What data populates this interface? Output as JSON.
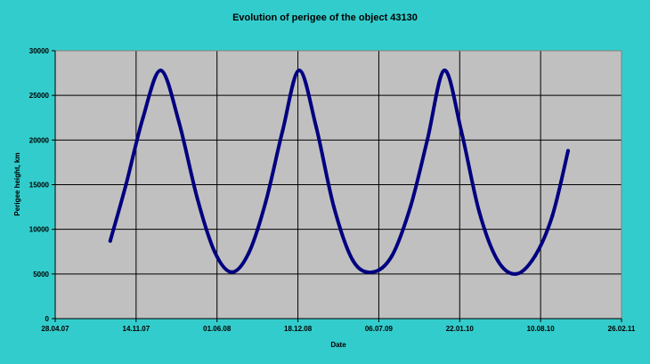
{
  "chart_data": {
    "type": "line",
    "title": "Evolution of perigee of the object 43130",
    "xlabel": "Date",
    "ylabel": "Perigee height, km",
    "x_tick_labels": [
      "28.04.07",
      "14.11.07",
      "01.06.08",
      "18.12.08",
      "06.07.09",
      "22.01.10",
      "10.08.10",
      "26.02.11"
    ],
    "y_ticks": [
      0,
      5000,
      10000,
      15000,
      20000,
      25000,
      30000
    ],
    "ylim": [
      0,
      30000
    ],
    "xlim": [
      "2007-04-28",
      "2011-02-26"
    ],
    "grid": true,
    "legend": "none",
    "series": [
      {
        "color": "#000080",
        "x": [
          "2007-09-11",
          "2007-10-20",
          "2007-12-01",
          "2008-01-14",
          "2008-02-28",
          "2008-04-13",
          "2008-05-26",
          "2008-07-07",
          "2008-08-18",
          "2008-09-29",
          "2008-11-10",
          "2008-12-21",
          "2009-02-01",
          "2009-03-17",
          "2009-05-03",
          "2009-06-20",
          "2009-08-07",
          "2009-09-22",
          "2009-11-03",
          "2009-12-15",
          "2010-01-26",
          "2010-03-11",
          "2010-04-26",
          "2010-06-11",
          "2010-07-27",
          "2010-09-08",
          "2010-10-17"
        ],
        "y": [
          8700,
          15000,
          22500,
          27800,
          22000,
          13500,
          7500,
          5200,
          7300,
          13000,
          21000,
          27800,
          21500,
          12500,
          6500,
          5200,
          7000,
          12500,
          20000,
          27800,
          21000,
          12000,
          6500,
          5000,
          7000,
          11500,
          18800
        ]
      }
    ]
  }
}
